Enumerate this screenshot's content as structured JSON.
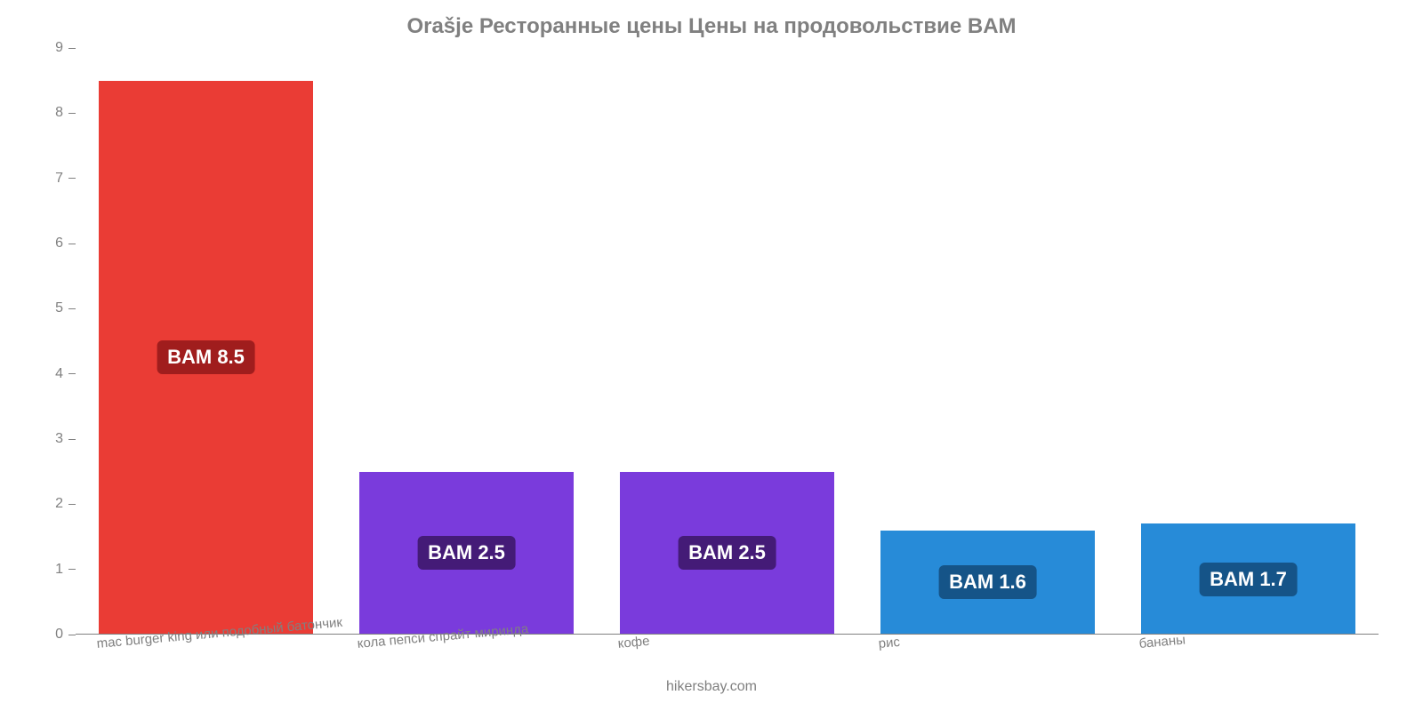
{
  "chart": {
    "type": "bar",
    "title": "Orašje Ресторанные цены Цены на продовольствие BAM",
    "title_color": "#808080",
    "title_fontsize": 24,
    "background_color": "#ffffff",
    "axis_color": "#808080",
    "tick_label_color": "#808080",
    "tick_label_fontsize": 16,
    "x_label_fontsize": 15,
    "x_label_rotate_deg": -5,
    "value_label_fontsize": 22,
    "value_label_text_color": "#ffffff",
    "value_label_prefix": "BAM ",
    "attribution": "hikersbay.com",
    "ylim": [
      0,
      9
    ],
    "ytick_step": 1,
    "bar_width_pct": 82,
    "categories": [
      "mac burger king или подобный батончик",
      "кола пепси спрайт миринда",
      "кофе",
      "рис",
      "бананы"
    ],
    "values": [
      8.5,
      2.5,
      2.5,
      1.6,
      1.7
    ],
    "bar_colors": [
      "#ea3c35",
      "#7a3bdc",
      "#7a3bdc",
      "#278bd8",
      "#278bd8"
    ],
    "badge_bg_colors": [
      "#a01d1d",
      "#441b77",
      "#441b77",
      "#155488",
      "#155488"
    ]
  }
}
